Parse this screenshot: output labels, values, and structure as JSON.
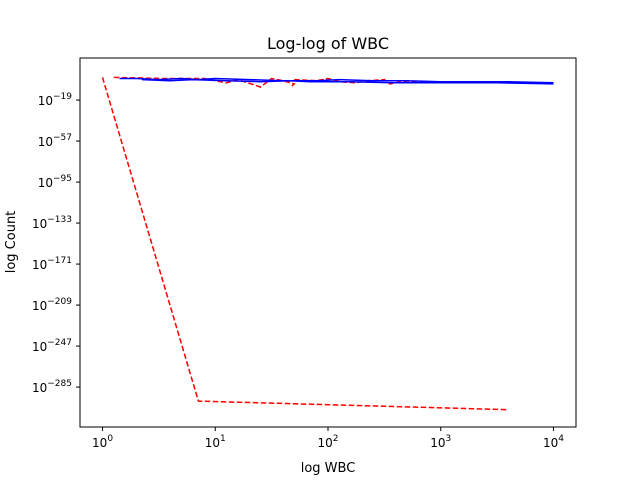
{
  "chart_data": {
    "type": "line",
    "title": "Log-log of WBC",
    "xlabel": "log WBC",
    "ylabel": "log Count",
    "xscale": "log",
    "yscale": "log",
    "xlim_log10": [
      -0.2,
      4.2
    ],
    "ylim_log10": [
      20,
      -322
    ],
    "x_ticks": [
      {
        "base": "10",
        "exp": "0",
        "log10": 0
      },
      {
        "base": "10",
        "exp": "1",
        "log10": 1
      },
      {
        "base": "10",
        "exp": "2",
        "log10": 2
      },
      {
        "base": "10",
        "exp": "3",
        "log10": 3
      },
      {
        "base": "10",
        "exp": "4",
        "log10": 4
      }
    ],
    "y_ticks": [
      {
        "base": "10",
        "exp": "−19",
        "log10": -19
      },
      {
        "base": "10",
        "exp": "−57",
        "log10": -57
      },
      {
        "base": "10",
        "exp": "−95",
        "log10": -95
      },
      {
        "base": "10",
        "exp": "−133",
        "log10": -133
      },
      {
        "base": "10",
        "exp": "−171",
        "log10": -171
      },
      {
        "base": "10",
        "exp": "−209",
        "log10": -209
      },
      {
        "base": "10",
        "exp": "−247",
        "log10": -247
      },
      {
        "base": "10",
        "exp": "−285",
        "log10": -285
      }
    ],
    "grid": false,
    "legend": "none",
    "series": [
      {
        "color": "#ff0000",
        "style": "dashed",
        "points_log10": [
          [
            0.0,
            2
          ],
          [
            0.85,
            -298
          ],
          [
            3.6,
            -306
          ]
        ]
      },
      {
        "color": "#ff0000",
        "style": "dashed",
        "points_log10": [
          [
            0.1,
            2
          ],
          [
            0.55,
            1
          ],
          [
            0.9,
            1
          ],
          [
            1.0,
            -1
          ],
          [
            1.1,
            -3
          ],
          [
            1.2,
            0
          ],
          [
            1.35,
            -5
          ],
          [
            1.4,
            -7
          ],
          [
            1.5,
            1
          ],
          [
            1.6,
            -1
          ],
          [
            1.7,
            -4
          ],
          [
            1.68,
            -6
          ]
        ]
      },
      {
        "color": "#ff0000",
        "style": "dashed",
        "points_log10": [
          [
            1.7,
            0
          ],
          [
            1.9,
            -1
          ],
          [
            2.0,
            1
          ],
          [
            2.1,
            -2
          ],
          [
            2.25,
            -3
          ],
          [
            2.35,
            -1
          ],
          [
            2.5,
            0
          ],
          [
            2.55,
            -4
          ],
          [
            2.65,
            -2
          ],
          [
            3.0,
            -3
          ],
          [
            3.3,
            -3
          ],
          [
            3.4,
            -3
          ]
        ]
      },
      {
        "color": "#0000ff",
        "style": "solid",
        "points_log10": [
          [
            0.15,
            1
          ],
          [
            0.3,
            1
          ],
          [
            0.5,
            0
          ],
          [
            0.7,
            1
          ],
          [
            0.85,
            0
          ],
          [
            1.0,
            1
          ],
          [
            1.3,
            0
          ],
          [
            1.6,
            -1
          ],
          [
            1.9,
            -1
          ],
          [
            2.1,
            0
          ],
          [
            2.4,
            -1
          ],
          [
            2.7,
            -1
          ],
          [
            3.0,
            -2
          ],
          [
            3.3,
            -2
          ],
          [
            3.6,
            -2
          ],
          [
            4.0,
            -3
          ]
        ]
      },
      {
        "color": "#0000ff",
        "style": "solid",
        "points_log10": [
          [
            0.35,
            0
          ],
          [
            0.6,
            -1
          ],
          [
            0.8,
            0
          ],
          [
            1.1,
            -1
          ],
          [
            1.4,
            -2
          ],
          [
            1.65,
            -1
          ],
          [
            1.85,
            -2
          ],
          [
            2.2,
            -2
          ],
          [
            2.6,
            -3
          ],
          [
            3.0,
            -3
          ],
          [
            3.5,
            -3
          ],
          [
            4.0,
            -4
          ]
        ]
      }
    ]
  }
}
